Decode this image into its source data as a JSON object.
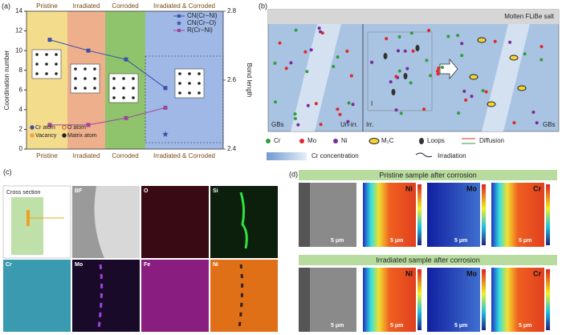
{
  "chart_data": {
    "type": "line",
    "panel_label": "(a)",
    "categories": [
      "Pristine",
      "Irradiated",
      "Corroded",
      "Irradiated & Corroded"
    ],
    "ylabel": "Coordination number",
    "y2label": "Bond length",
    "ylim": [
      0,
      14
    ],
    "yticks": [
      0,
      2,
      4,
      6,
      8,
      10,
      12,
      14
    ],
    "y2lim": [
      2.4,
      2.8
    ],
    "y2ticks": [
      2.4,
      2.6,
      2.8
    ],
    "band_colors": [
      "#f3dc8c",
      "#eeb08c",
      "#8fc46c",
      "#9fb8e6"
    ],
    "series": [
      {
        "name": "CN(Cr−Ni)",
        "color": "#3d50a8",
        "marker": "square",
        "values": [
          11.1,
          10.0,
          9.1,
          6.2
        ]
      },
      {
        "name": "CN(Cr−O)",
        "color": "#3d50a8",
        "marker": "star",
        "values": [
          null,
          null,
          null,
          1.5
        ]
      },
      {
        "name": "R(Cr−Ni)",
        "color": "#a0449a",
        "marker": "square",
        "axis": "y2",
        "values": [
          2.47,
          2.47,
          2.49,
          2.52
        ]
      }
    ],
    "atom_legend": [
      "Cr atom",
      "O atom",
      "Vacancy",
      "Matrix atom"
    ]
  },
  "panel_b": {
    "label": "(b)",
    "header": "Molten FLiBe salt",
    "gbs_left": "GBs",
    "unirr": "Un-irr.",
    "irr": "Irr.",
    "gbs_right": "GBs",
    "roman": "I",
    "legend": [
      "Cr",
      "Mo",
      "Ni",
      "M₂C",
      "Loops",
      "Diffusion",
      "Cr concentration",
      "Irradiation"
    ]
  },
  "panel_c": {
    "label": "(c)",
    "cross_section": "Cross section",
    "maps": [
      "BF",
      "O",
      "Si",
      "Cr",
      "Mo",
      "Fe",
      "Ni"
    ]
  },
  "panel_d": {
    "label": "(d)",
    "pristine": "Pristine sample after corrosion",
    "irradiated": "Irradiated sample after corrosion",
    "elements": [
      "Ni",
      "Mo",
      "Cr"
    ],
    "scale": "5 μm"
  }
}
